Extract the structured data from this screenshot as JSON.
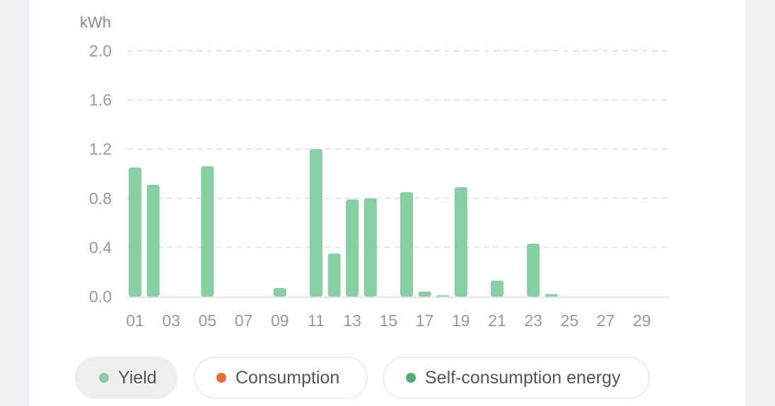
{
  "chart_data": {
    "type": "bar",
    "unit_label": "kWh",
    "ylim": [
      0,
      2.0
    ],
    "yticks": [
      "0.0",
      "0.4",
      "0.8",
      "1.2",
      "1.6",
      "2.0"
    ],
    "ytick_values": [
      0,
      0.4,
      0.8,
      1.2,
      1.6,
      2.0
    ],
    "grid": true,
    "x_tick_labels": [
      "01",
      "03",
      "05",
      "07",
      "09",
      "11",
      "13",
      "15",
      "17",
      "19",
      "21",
      "23",
      "25",
      "27",
      "29"
    ],
    "categories": [
      "01",
      "02",
      "03",
      "04",
      "05",
      "06",
      "07",
      "08",
      "09",
      "10",
      "11",
      "12",
      "13",
      "14",
      "15",
      "16",
      "17",
      "18",
      "19",
      "20",
      "21",
      "22",
      "23",
      "24",
      "25",
      "26",
      "27",
      "28",
      "29",
      "30"
    ],
    "series": [
      {
        "name": "Yield",
        "color": "#86cfa3",
        "values": [
          1.05,
          0.91,
          0,
          0,
          1.06,
          0,
          0,
          0,
          0.07,
          0,
          1.2,
          0.35,
          0.79,
          0.8,
          0,
          0.85,
          0.04,
          0.01,
          0.89,
          0,
          0.13,
          0,
          0.43,
          0.02,
          0,
          0,
          0,
          0,
          0,
          0
        ]
      }
    ],
    "legend_placement": "bottom"
  },
  "legend": [
    {
      "label": "Yield",
      "color": "#86cfa3",
      "active": true
    },
    {
      "label": "Consumption",
      "color": "#f06a35",
      "active": false
    },
    {
      "label": "Self-consumption energy",
      "color": "#4caf75",
      "active": false
    }
  ]
}
